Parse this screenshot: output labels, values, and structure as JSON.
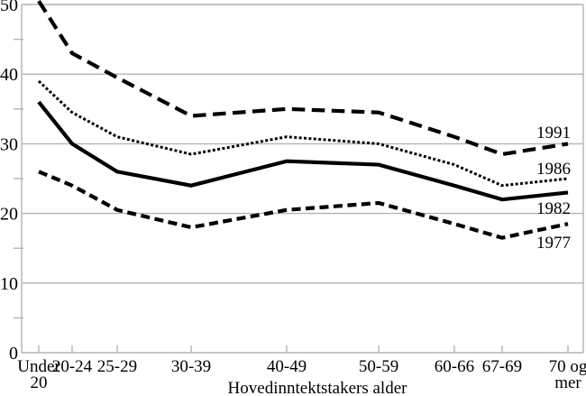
{
  "chart_data": {
    "type": "line",
    "title": "",
    "xlabel": "Hovedinntektstakers alder",
    "ylabel": "",
    "ylim": [
      0,
      50
    ],
    "y_major_ticks": [
      0,
      10,
      20,
      30,
      40,
      50
    ],
    "y_minor_ticks": [
      5,
      15,
      25,
      35,
      45
    ],
    "grid": "horizontal-major-light-gray, gray right border, ticks inside on x-axis, minor ticks outside on y-axis",
    "legend_position": "inline-right-at-line-ends",
    "categories": [
      "Under 20",
      "20-24",
      "25-29",
      "30-39",
      "40-49",
      "50-59",
      "60-66",
      "67-69",
      "70 og mer"
    ],
    "x_positions_rel": [
      0.0305,
      0.0899,
      0.1701,
      0.3018,
      0.4719,
      0.6357,
      0.7704,
      0.8555,
      0.9727
    ],
    "series": [
      {
        "name": "1991",
        "line_style": "long-dash",
        "values": [
          50.5,
          43,
          39.5,
          34,
          35,
          34.5,
          31,
          28.5,
          30
        ]
      },
      {
        "name": "1986",
        "line_style": "dotted",
        "values": [
          39,
          34.5,
          31,
          28.5,
          31,
          30,
          27,
          24,
          25
        ]
      },
      {
        "name": "1982",
        "line_style": "solid",
        "values": [
          36,
          30,
          26,
          24,
          27.5,
          27,
          24,
          22,
          23
        ]
      },
      {
        "name": "1977",
        "line_style": "dash",
        "values": [
          26,
          24,
          20.5,
          18,
          20.5,
          21.5,
          18.5,
          16.5,
          18.5
        ]
      }
    ],
    "colors": {
      "line": "#000000",
      "grid": "#b3b3b3",
      "text": "#000000",
      "background": "#ffffff"
    }
  }
}
